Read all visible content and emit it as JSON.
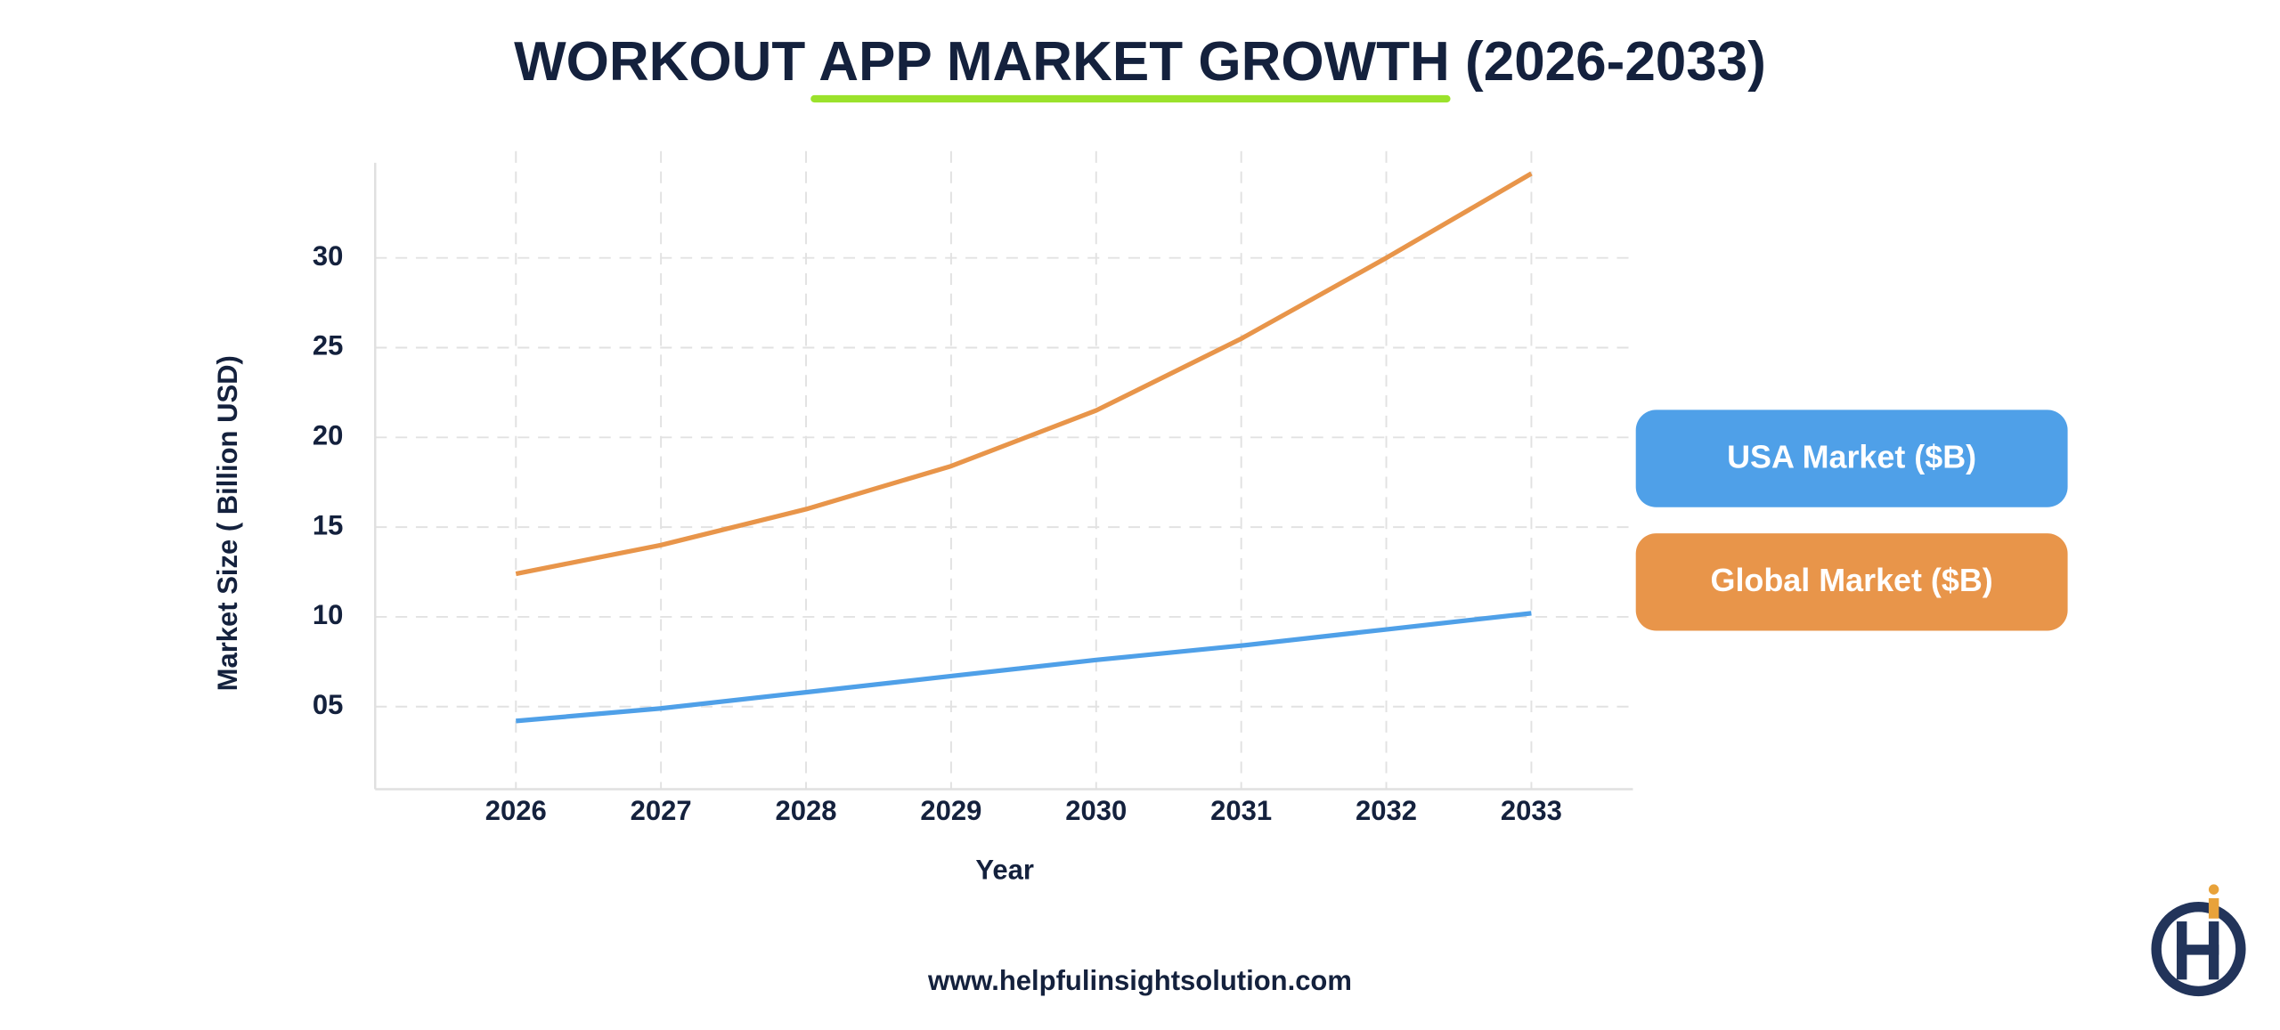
{
  "chart_data": {
    "type": "line",
    "title": "WORKOUT APP MARKET GROWTH (2026-2033)",
    "x_label": "Year",
    "y_label": "Market Size ( Billion USD)",
    "x": [
      2026,
      2027,
      2028,
      2029,
      2030,
      2031,
      2032,
      2033
    ],
    "series": [
      {
        "name": "USA Market ($B)",
        "color": "#4fa0e8",
        "values": [
          4.2,
          4.9,
          5.8,
          6.7,
          7.6,
          8.4,
          9.3,
          10.2
        ]
      },
      {
        "name": "Global Market ($B)",
        "color": "#e8954a",
        "values": [
          12.4,
          14.0,
          16.0,
          18.4,
          21.5,
          25.5,
          30.0,
          34.7
        ]
      }
    ],
    "xlim": [
      2025.03,
      2033.7
    ],
    "xticks": [
      2026,
      2027,
      2028,
      2029,
      2030,
      2031,
      2032,
      2033
    ],
    "ylim": [
      0.4,
      35.3
    ],
    "yticks": [
      {
        "value": 5,
        "label": "05"
      },
      10,
      15,
      20,
      25,
      30
    ],
    "grid": true,
    "footer": "www.helpfulinsightsolution.com"
  }
}
